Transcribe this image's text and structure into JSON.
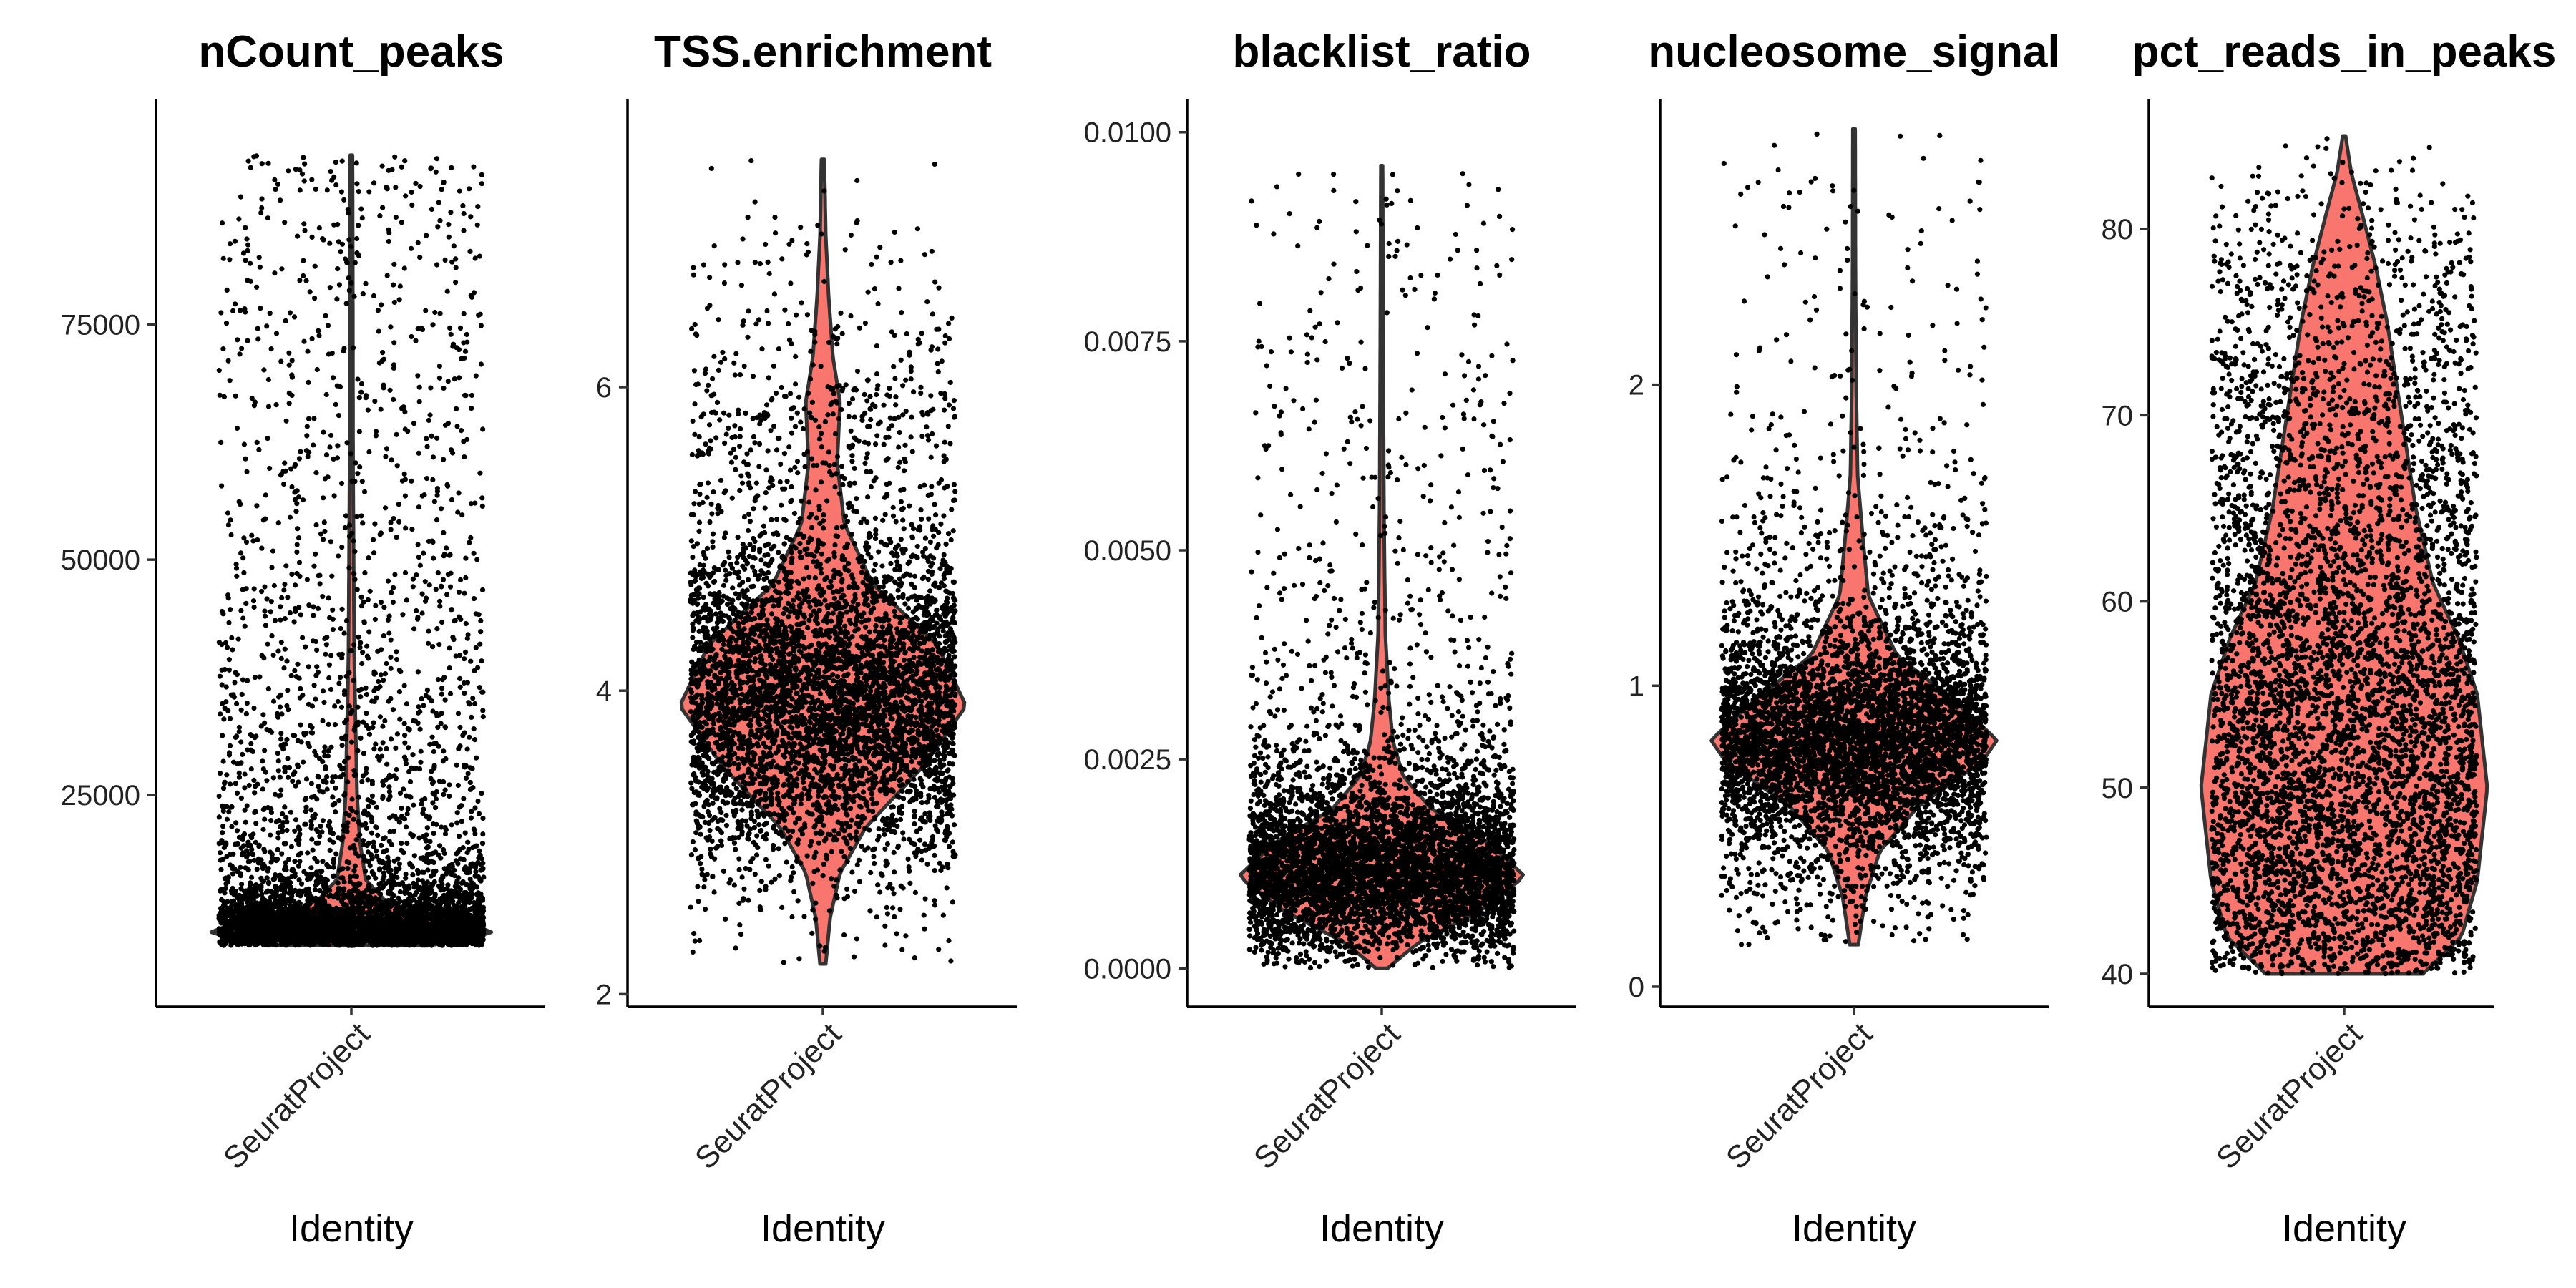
{
  "chart_data": [
    {
      "type": "violin",
      "title": "nCount_peaks",
      "xlabel": "Identity",
      "ylabel": "",
      "categories": [
        "SeuratProject"
      ],
      "ylim": [
        3000,
        99000
      ],
      "yticks": [
        25000,
        50000,
        75000
      ],
      "ytick_labels": [
        "25000",
        "50000",
        "75000"
      ],
      "values": {
        "min": 9000,
        "max": 93000,
        "median": 12500
      },
      "density_profile": [
        [
          9000,
          0.55
        ],
        [
          10000,
          0.95
        ],
        [
          10700,
          1.0
        ],
        [
          11600,
          0.7
        ],
        [
          13500,
          0.25
        ],
        [
          16000,
          0.1
        ],
        [
          20000,
          0.06
        ],
        [
          25000,
          0.04
        ],
        [
          32000,
          0.03
        ],
        [
          40000,
          0.02
        ],
        [
          60000,
          0.012
        ],
        [
          80000,
          0.01
        ],
        [
          93000,
          0.008
        ]
      ],
      "fill_color": "#f8766d",
      "outline_color": "#333333",
      "point_color": "#000000",
      "grid": false,
      "legend": "none"
    },
    {
      "type": "violin",
      "title": "TSS.enrichment",
      "xlabel": "Identity",
      "ylabel": "",
      "categories": [
        "SeuratProject"
      ],
      "ylim": [
        1.95,
        7.9
      ],
      "yticks": [
        2,
        4,
        6
      ],
      "ytick_labels": [
        "2",
        "4",
        "6"
      ],
      "values": {
        "min": 2.2,
        "max": 7.5,
        "median": 3.9
      },
      "density_profile": [
        [
          2.2,
          0.02
        ],
        [
          2.5,
          0.05
        ],
        [
          2.8,
          0.12
        ],
        [
          3.1,
          0.3
        ],
        [
          3.5,
          0.7
        ],
        [
          3.9,
          1.0
        ],
        [
          4.3,
          0.8
        ],
        [
          4.7,
          0.35
        ],
        [
          5.1,
          0.15
        ],
        [
          5.5,
          0.1
        ],
        [
          5.9,
          0.12
        ],
        [
          6.2,
          0.07
        ],
        [
          6.6,
          0.04
        ],
        [
          7.0,
          0.02
        ],
        [
          7.5,
          0.01
        ]
      ],
      "fill_color": "#f8766d",
      "outline_color": "#333333",
      "point_color": "#000000",
      "grid": false,
      "legend": "none"
    },
    {
      "type": "violin",
      "title": "blacklist_ratio",
      "xlabel": "Identity",
      "ylabel": "",
      "categories": [
        "SeuratProject"
      ],
      "ylim": [
        -0.0004,
        0.0104
      ],
      "yticks": [
        0.0,
        0.0025,
        0.005,
        0.0075,
        0.01
      ],
      "ytick_labels": [
        "0.0000",
        "0.0025",
        "0.0050",
        "0.0075",
        "0.0100"
      ],
      "values": {
        "min": 0.0,
        "max": 0.0096,
        "median": 0.0011
      },
      "density_profile": [
        [
          0.0,
          0.04
        ],
        [
          0.0003,
          0.25
        ],
        [
          0.0007,
          0.7
        ],
        [
          0.0011,
          1.0
        ],
        [
          0.0015,
          0.75
        ],
        [
          0.0019,
          0.35
        ],
        [
          0.0023,
          0.15
        ],
        [
          0.0027,
          0.08
        ],
        [
          0.0032,
          0.05
        ],
        [
          0.004,
          0.025
        ],
        [
          0.0055,
          0.015
        ],
        [
          0.0075,
          0.01
        ],
        [
          0.0096,
          0.006
        ]
      ],
      "fill_color": "#f8766d",
      "outline_color": "#333333",
      "point_color": "#000000",
      "grid": false,
      "legend": "none"
    },
    {
      "type": "violin",
      "title": "nucleosome_signal",
      "xlabel": "Identity",
      "ylabel": "",
      "categories": [
        "SeuratProject"
      ],
      "ylim": [
        -0.05,
        2.95
      ],
      "yticks": [
        0,
        1,
        2
      ],
      "ytick_labels": [
        "0",
        "1",
        "2"
      ],
      "values": {
        "min": 0.14,
        "max": 2.85,
        "median": 0.8
      },
      "density_profile": [
        [
          0.14,
          0.03
        ],
        [
          0.3,
          0.08
        ],
        [
          0.45,
          0.18
        ],
        [
          0.6,
          0.45
        ],
        [
          0.75,
          0.9
        ],
        [
          0.82,
          1.0
        ],
        [
          0.95,
          0.7
        ],
        [
          1.1,
          0.3
        ],
        [
          1.3,
          0.1
        ],
        [
          1.5,
          0.06
        ],
        [
          1.7,
          0.025
        ],
        [
          2.0,
          0.015
        ],
        [
          2.4,
          0.01
        ],
        [
          2.85,
          0.008
        ]
      ],
      "fill_color": "#f8766d",
      "outline_color": "#333333",
      "point_color": "#000000",
      "grid": false,
      "legend": "none"
    },
    {
      "type": "violin",
      "title": "pct_reads_in_peaks",
      "xlabel": "Identity",
      "ylabel": "",
      "categories": [
        "SeuratProject"
      ],
      "ylim": [
        38.5,
        87
      ],
      "yticks": [
        40,
        50,
        60,
        70,
        80
      ],
      "ytick_labels": [
        "40",
        "50",
        "60",
        "70",
        "80"
      ],
      "values": {
        "min": 40,
        "max": 85,
        "median": 56
      },
      "density_profile": [
        [
          40,
          0.55
        ],
        [
          42,
          0.82
        ],
        [
          45,
          0.93
        ],
        [
          50,
          1.0
        ],
        [
          55,
          0.93
        ],
        [
          58,
          0.8
        ],
        [
          61,
          0.62
        ],
        [
          65,
          0.5
        ],
        [
          70,
          0.4
        ],
        [
          75,
          0.3
        ],
        [
          78,
          0.22
        ],
        [
          81,
          0.12
        ],
        [
          83,
          0.05
        ],
        [
          85,
          0.01
        ]
      ],
      "fill_color": "#f8766d",
      "outline_color": "#333333",
      "point_color": "#000000",
      "grid": false,
      "legend": "none"
    }
  ]
}
